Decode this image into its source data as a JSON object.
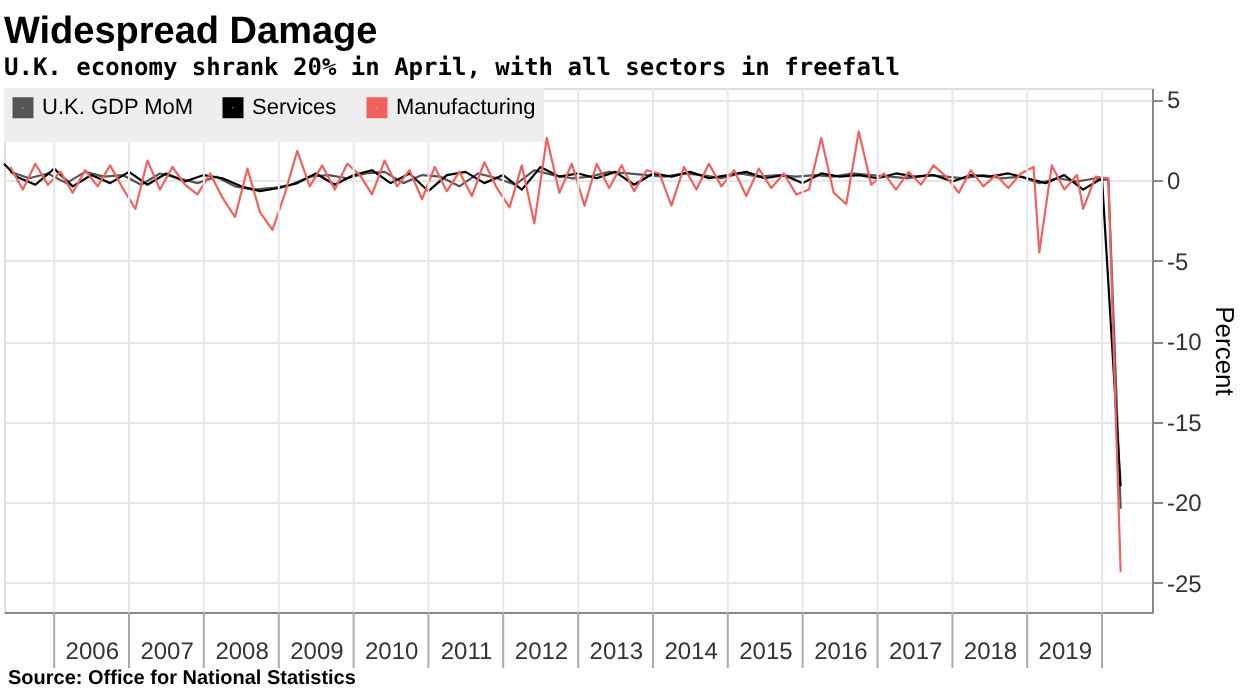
{
  "chart_data": {
    "type": "line",
    "title": "Widespread Damage",
    "subtitle": "U.K. economy shrank 20% in April, with all sectors in freefall",
    "ylabel": "Percent",
    "xlim": [
      "2005-05",
      "2020-09"
    ],
    "xticks": [
      {
        "value": "2006",
        "label": null
      },
      {
        "value": "2006-07",
        "label": "2006"
      },
      {
        "value": "2007",
        "label": null
      },
      {
        "value": "2007-07",
        "label": "2007"
      },
      {
        "value": "2008",
        "label": null
      },
      {
        "value": "2008-07",
        "label": "2008"
      },
      {
        "value": "2009",
        "label": null
      },
      {
        "value": "2009-07",
        "label": "2009"
      },
      {
        "value": "2010",
        "label": null
      },
      {
        "value": "2010-07",
        "label": "2010"
      },
      {
        "value": "2011",
        "label": null
      },
      {
        "value": "2011-07",
        "label": "2011"
      },
      {
        "value": "2012",
        "label": null
      },
      {
        "value": "2012-07",
        "label": "2012"
      },
      {
        "value": "2013",
        "label": null
      },
      {
        "value": "2013-07",
        "label": "2013"
      },
      {
        "value": "2014",
        "label": null
      },
      {
        "value": "2014-07",
        "label": "2014"
      },
      {
        "value": "2015",
        "label": null
      },
      {
        "value": "2015-07",
        "label": "2015"
      },
      {
        "value": "2016",
        "label": null
      },
      {
        "value": "2016-07",
        "label": "2016"
      },
      {
        "value": "2017",
        "label": null
      },
      {
        "value": "2017-07",
        "label": "2017"
      },
      {
        "value": "2018",
        "label": null
      },
      {
        "value": "2018-07",
        "label": "2018"
      },
      {
        "value": "2019",
        "label": null
      },
      {
        "value": "2019-07",
        "label": "2019"
      },
      {
        "value": "2020",
        "label": null
      }
    ],
    "ylim": [
      -26.8,
      5.7
    ],
    "yticks": [
      5,
      0,
      -5,
      -10,
      -15,
      -20,
      -25
    ],
    "grid": true,
    "legend": "top left",
    "marker": "none",
    "line_style": "solid",
    "annotations": [
      "Source: Office for National Statistics"
    ],
    "series": [
      {
        "name": "U.K. GDP MoM",
        "color": "#555555",
        "x": [
          "2005-06",
          "2005-09",
          "2005-12",
          "2006-03",
          "2006-06",
          "2006-09",
          "2006-12",
          "2007-03",
          "2007-06",
          "2007-09",
          "2007-12",
          "2008-03",
          "2008-06",
          "2008-09",
          "2008-12",
          "2009-03",
          "2009-06",
          "2009-09",
          "2009-12",
          "2010-03",
          "2010-06",
          "2010-09",
          "2010-12",
          "2011-03",
          "2011-06",
          "2011-09",
          "2011-12",
          "2012-03",
          "2012-06",
          "2012-09",
          "2012-12",
          "2013-03",
          "2013-06",
          "2013-09",
          "2013-12",
          "2014-03",
          "2014-06",
          "2014-09",
          "2014-12",
          "2015-03",
          "2015-06",
          "2015-09",
          "2015-12",
          "2016-03",
          "2016-06",
          "2016-09",
          "2016-12",
          "2017-03",
          "2017-06",
          "2017-09",
          "2017-12",
          "2018-03",
          "2018-06",
          "2018-09",
          "2018-12",
          "2019-03",
          "2019-06",
          "2019-09",
          "2019-12",
          "2020-02",
          "2020-04"
        ],
        "values": [
          0.5,
          0.1,
          0.4,
          -0.2,
          0.5,
          0.2,
          0.3,
          -0.3,
          0.4,
          0.1,
          -0.2,
          0.2,
          -0.4,
          -0.6,
          -0.5,
          -0.3,
          0.2,
          0.3,
          0.1,
          0.4,
          0.5,
          -0.2,
          0.3,
          0.2,
          -0.4,
          0.4,
          0.1,
          -0.3,
          0.6,
          0.3,
          0.1,
          0.2,
          0.5,
          0.4,
          0.3,
          0.2,
          0.4,
          0.3,
          0.1,
          0.4,
          0.2,
          0.3,
          0.2,
          0.3,
          0.2,
          0.4,
          0.3,
          0.2,
          0.1,
          0.3,
          0.2,
          0.1,
          0.3,
          0.1,
          0.2,
          -0.2,
          0.1,
          -0.1,
          0.1,
          0.0,
          -20.4
        ]
      },
      {
        "name": "Services",
        "color": "#000000",
        "x": [
          "2005-05",
          "2005-07",
          "2005-10",
          "2006-01",
          "2006-04",
          "2006-07",
          "2006-10",
          "2007-01",
          "2007-04",
          "2007-07",
          "2007-10",
          "2008-01",
          "2008-04",
          "2008-07",
          "2008-10",
          "2009-01",
          "2009-04",
          "2009-07",
          "2009-10",
          "2010-01",
          "2010-04",
          "2010-07",
          "2010-10",
          "2011-01",
          "2011-04",
          "2011-07",
          "2011-10",
          "2012-01",
          "2012-04",
          "2012-07",
          "2012-10",
          "2013-01",
          "2013-04",
          "2013-07",
          "2013-10",
          "2014-01",
          "2014-04",
          "2014-07",
          "2014-10",
          "2015-01",
          "2015-04",
          "2015-07",
          "2015-10",
          "2016-01",
          "2016-04",
          "2016-07",
          "2016-10",
          "2017-01",
          "2017-04",
          "2017-07",
          "2017-10",
          "2018-01",
          "2018-04",
          "2018-07",
          "2018-10",
          "2019-01",
          "2019-04",
          "2019-07",
          "2019-10",
          "2020-01",
          "2020-04"
        ],
        "values": [
          1.0,
          0.2,
          -0.3,
          0.7,
          -0.4,
          0.3,
          -0.2,
          0.5,
          -0.3,
          0.4,
          -0.1,
          0.3,
          0.1,
          -0.4,
          -0.7,
          -0.5,
          -0.2,
          0.4,
          -0.3,
          0.3,
          0.6,
          -0.2,
          0.4,
          -0.7,
          0.3,
          0.5,
          -0.2,
          0.3,
          -0.6,
          0.8,
          0.2,
          0.4,
          0.1,
          0.5,
          -0.3,
          0.4,
          0.2,
          0.5,
          0.1,
          0.3,
          0.5,
          0.1,
          0.3,
          -0.2,
          0.4,
          0.2,
          0.3,
          0.1,
          0.4,
          0.2,
          0.3,
          -0.1,
          0.3,
          0.2,
          0.4,
          0.1,
          -0.2,
          0.3,
          -0.6,
          0.1,
          -19.0
        ]
      },
      {
        "name": "Manufacturing",
        "color": "#f0625d",
        "x": [
          "2005-06",
          "2005-08",
          "2005-10",
          "2005-12",
          "2006-02",
          "2006-04",
          "2006-06",
          "2006-08",
          "2006-10",
          "2006-12",
          "2007-02",
          "2007-04",
          "2007-06",
          "2007-08",
          "2007-10",
          "2007-12",
          "2008-02",
          "2008-04",
          "2008-06",
          "2008-08",
          "2008-10",
          "2008-12",
          "2009-02",
          "2009-04",
          "2009-06",
          "2009-08",
          "2009-10",
          "2009-12",
          "2010-02",
          "2010-04",
          "2010-06",
          "2010-08",
          "2010-10",
          "2010-12",
          "2011-02",
          "2011-04",
          "2011-06",
          "2011-08",
          "2011-10",
          "2011-12",
          "2012-02",
          "2012-04",
          "2012-06",
          "2012-08",
          "2012-10",
          "2012-12",
          "2013-02",
          "2013-04",
          "2013-06",
          "2013-08",
          "2013-10",
          "2013-12",
          "2014-02",
          "2014-04",
          "2014-06",
          "2014-08",
          "2014-10",
          "2014-12",
          "2015-02",
          "2015-04",
          "2015-06",
          "2015-08",
          "2015-10",
          "2015-12",
          "2016-02",
          "2016-04",
          "2016-06",
          "2016-08",
          "2016-10",
          "2016-12",
          "2017-02",
          "2017-04",
          "2017-06",
          "2017-08",
          "2017-10",
          "2017-12",
          "2018-02",
          "2018-04",
          "2018-06",
          "2018-08",
          "2018-10",
          "2018-12",
          "2019-02",
          "2019-03",
          "2019-05",
          "2019-07",
          "2019-09",
          "2019-10",
          "2019-12",
          "2020-02",
          "2020-04"
        ],
        "values": [
          0.8,
          -0.6,
          1.0,
          -0.3,
          0.5,
          -0.8,
          0.6,
          -0.4,
          0.9,
          -0.5,
          -1.8,
          1.2,
          -0.6,
          0.8,
          -0.3,
          -0.9,
          0.4,
          -1.1,
          -2.3,
          0.7,
          -2.0,
          -3.1,
          -0.8,
          1.8,
          -0.4,
          0.9,
          -0.6,
          1.0,
          0.3,
          -0.9,
          1.2,
          -0.4,
          0.6,
          -1.2,
          0.8,
          -0.7,
          0.5,
          -1.0,
          1.1,
          -0.5,
          -1.7,
          0.9,
          -2.7,
          2.6,
          -0.8,
          1.0,
          -1.6,
          1.0,
          -0.5,
          0.9,
          -0.7,
          0.6,
          0.4,
          -1.6,
          0.8,
          -0.6,
          1.0,
          -0.4,
          0.6,
          -1.0,
          0.7,
          -0.5,
          0.4,
          -0.9,
          -0.6,
          2.6,
          -0.8,
          -1.5,
          3.0,
          -0.3,
          0.4,
          -0.6,
          0.5,
          -0.3,
          0.9,
          0.2,
          -0.8,
          0.6,
          -0.4,
          0.3,
          -0.5,
          0.4,
          0.8,
          -4.5,
          0.9,
          -0.6,
          0.3,
          -1.8,
          0.2,
          0.1,
          -24.3
        ]
      }
    ]
  }
}
